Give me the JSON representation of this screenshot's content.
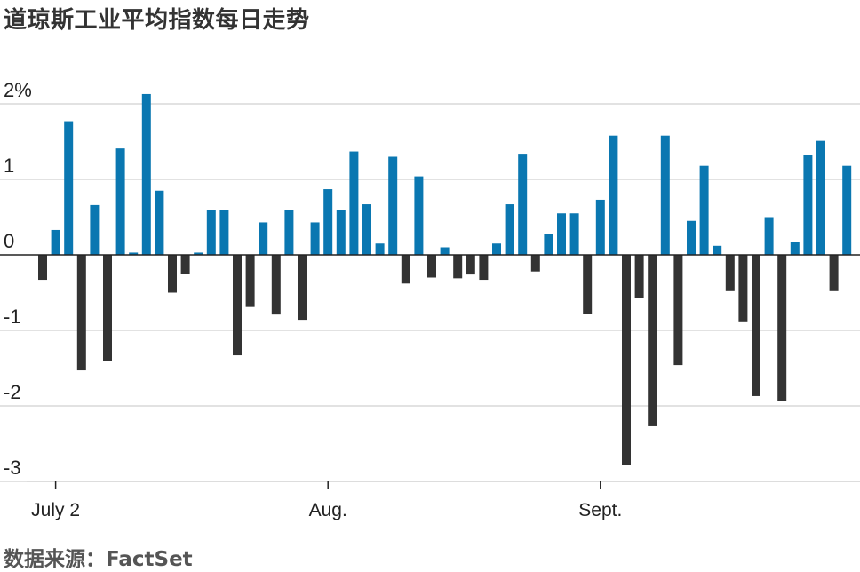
{
  "chart_data": {
    "type": "bar",
    "title": "道琼斯工业平均指数每日走势",
    "source": "数据来源：FactSet",
    "xlabel": "",
    "ylabel": "",
    "ylim": [
      -3,
      2
    ],
    "y_ticks": [
      {
        "value": 2,
        "label": "2%"
      },
      {
        "value": 1,
        "label": "1"
      },
      {
        "value": 0,
        "label": "0"
      },
      {
        "value": -1,
        "label": "-1"
      },
      {
        "value": -2,
        "label": "-2"
      },
      {
        "value": -3,
        "label": "-3"
      }
    ],
    "x_ticks": [
      {
        "index": 1,
        "label": "July 2"
      },
      {
        "index": 22,
        "label": "Aug."
      },
      {
        "index": 43,
        "label": "Sept."
      }
    ],
    "grid": true,
    "colors": {
      "positive": "#0a77b1",
      "negative": "#333333",
      "grid": "#d0d0d0",
      "zero_line": "#222222"
    },
    "values": [
      -0.33,
      0.33,
      1.77,
      -1.53,
      0.66,
      -1.4,
      1.41,
      0.03,
      2.13,
      0.85,
      -0.5,
      -0.25,
      0.03,
      0.6,
      0.6,
      -1.33,
      -0.69,
      0.43,
      -0.79,
      0.6,
      -0.86,
      0.43,
      0.87,
      0.6,
      1.37,
      0.67,
      0.15,
      1.3,
      -0.38,
      1.04,
      -0.3,
      0.1,
      -0.31,
      -0.26,
      -0.33,
      0.15,
      0.67,
      1.34,
      -0.22,
      0.28,
      0.55,
      0.55,
      -0.78,
      0.73,
      1.58,
      -2.78,
      -0.57,
      -2.27,
      1.58,
      -1.46,
      0.45,
      1.18,
      0.12,
      -0.48,
      -0.88,
      -1.87,
      0.5,
      -1.94,
      0.17,
      1.32,
      1.51,
      -0.48,
      1.18
    ]
  }
}
